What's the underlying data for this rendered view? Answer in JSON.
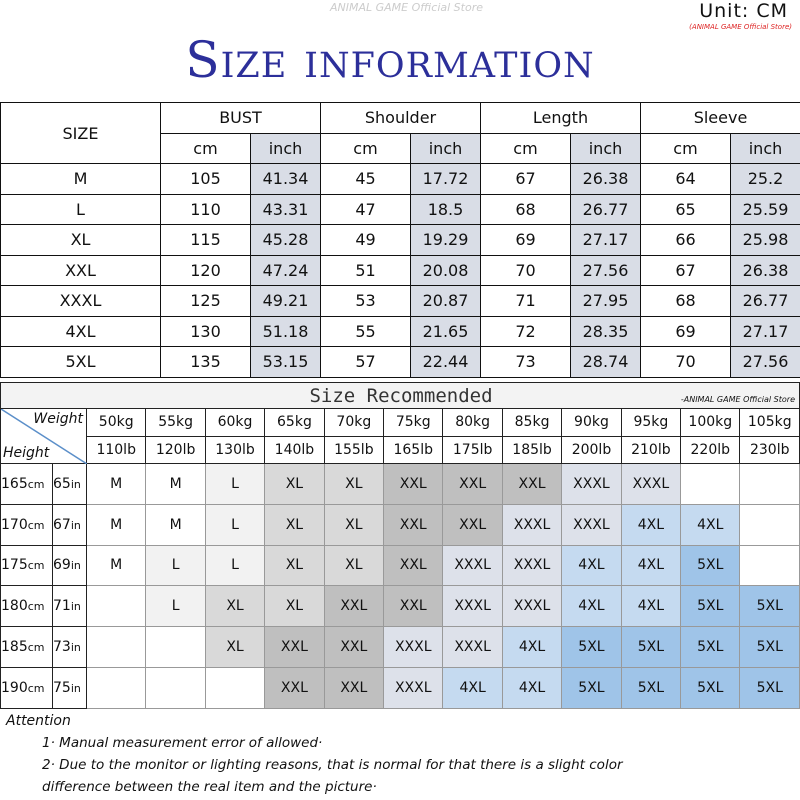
{
  "header": {
    "title": "Size information",
    "unit": "Unit: CM",
    "unit_sub": "(ANIMAL GAME Official Store)",
    "watermark": "ANIMAL GAME Official Store"
  },
  "size_table": {
    "size_label": "SIZE",
    "groups": [
      "BUST",
      "Shoulder",
      "Length",
      "Sleeve"
    ],
    "sub": [
      "cm",
      "inch"
    ],
    "rows": [
      [
        "M",
        "105",
        "41.34",
        "45",
        "17.72",
        "67",
        "26.38",
        "64",
        "25.2"
      ],
      [
        "L",
        "110",
        "43.31",
        "47",
        "18.5",
        "68",
        "26.77",
        "65",
        "25.59"
      ],
      [
        "XL",
        "115",
        "45.28",
        "49",
        "19.29",
        "69",
        "27.17",
        "66",
        "25.98"
      ],
      [
        "XXL",
        "120",
        "47.24",
        "51",
        "20.08",
        "70",
        "27.56",
        "67",
        "26.38"
      ],
      [
        "XXXL",
        "125",
        "49.21",
        "53",
        "20.87",
        "71",
        "27.95",
        "68",
        "26.77"
      ],
      [
        "4XL",
        "130",
        "51.18",
        "55",
        "21.65",
        "72",
        "28.35",
        "69",
        "27.17"
      ],
      [
        "5XL",
        "135",
        "53.15",
        "57",
        "22.44",
        "73",
        "28.74",
        "70",
        "27.56"
      ]
    ]
  },
  "recommend": {
    "title": "Size Recommended",
    "store": "-ANIMAL GAME Official Store",
    "weight_label": "Weight",
    "height_label": "Height",
    "kg": [
      "50kg",
      "55kg",
      "60kg",
      "65kg",
      "70kg",
      "75kg",
      "80kg",
      "85kg",
      "90kg",
      "95kg",
      "100kg",
      "105kg"
    ],
    "lb": [
      "110lb",
      "120lb",
      "130lb",
      "140lb",
      "155lb",
      "165lb",
      "175lb",
      "185lb",
      "200lb",
      "210lb",
      "220lb",
      "230lb"
    ],
    "rows": [
      {
        "cm": "165",
        "in": "65",
        "sizes": [
          "M",
          "M",
          "L",
          "XL",
          "XL",
          "XXL",
          "XXL",
          "XXL",
          "XXXL",
          "XXXL",
          "",
          ""
        ]
      },
      {
        "cm": "170",
        "in": "67",
        "sizes": [
          "M",
          "M",
          "L",
          "XL",
          "XL",
          "XXL",
          "XXL",
          "XXXL",
          "XXXL",
          "4XL",
          "4XL",
          ""
        ]
      },
      {
        "cm": "175",
        "in": "69",
        "sizes": [
          "M",
          "L",
          "L",
          "XL",
          "XL",
          "XXL",
          "XXXL",
          "XXXL",
          "4XL",
          "4XL",
          "5XL",
          ""
        ]
      },
      {
        "cm": "180",
        "in": "71",
        "sizes": [
          "",
          "L",
          "XL",
          "XL",
          "XXL",
          "XXL",
          "XXXL",
          "XXXL",
          "4XL",
          "4XL",
          "5XL",
          "5XL"
        ]
      },
      {
        "cm": "185",
        "in": "73",
        "sizes": [
          "",
          "",
          "XL",
          "XXL",
          "XXL",
          "XXXL",
          "XXXL",
          "4XL",
          "5XL",
          "5XL",
          "5XL",
          "5XL"
        ]
      },
      {
        "cm": "190",
        "in": "75",
        "sizes": [
          "",
          "",
          "",
          "XXL",
          "XXL",
          "XXXL",
          "4XL",
          "4XL",
          "5XL",
          "5XL",
          "5XL",
          "5XL"
        ]
      }
    ],
    "cm_unit": "cm",
    "in_unit": "in",
    "colors": {
      "M": "#ffffff",
      "L": "#f2f2f2",
      "XL": "#d9d9d9",
      "XXL": "#bfbfbf",
      "XXXL": "#dde1ea",
      "4XL": "#c5daf0",
      "5XL": "#9fc4e8",
      "": "#ffffff"
    }
  },
  "attention": {
    "title": "Attention",
    "notes": [
      "1· Manual measurement error of allowed·",
      "2·  Due to the monitor or lighting reasons, that is normal for that there is a slight color",
      "difference between the real item and the picture·"
    ]
  },
  "colors": {
    "title": "#2c2f9a",
    "inch_fill": "#d9dde6"
  }
}
